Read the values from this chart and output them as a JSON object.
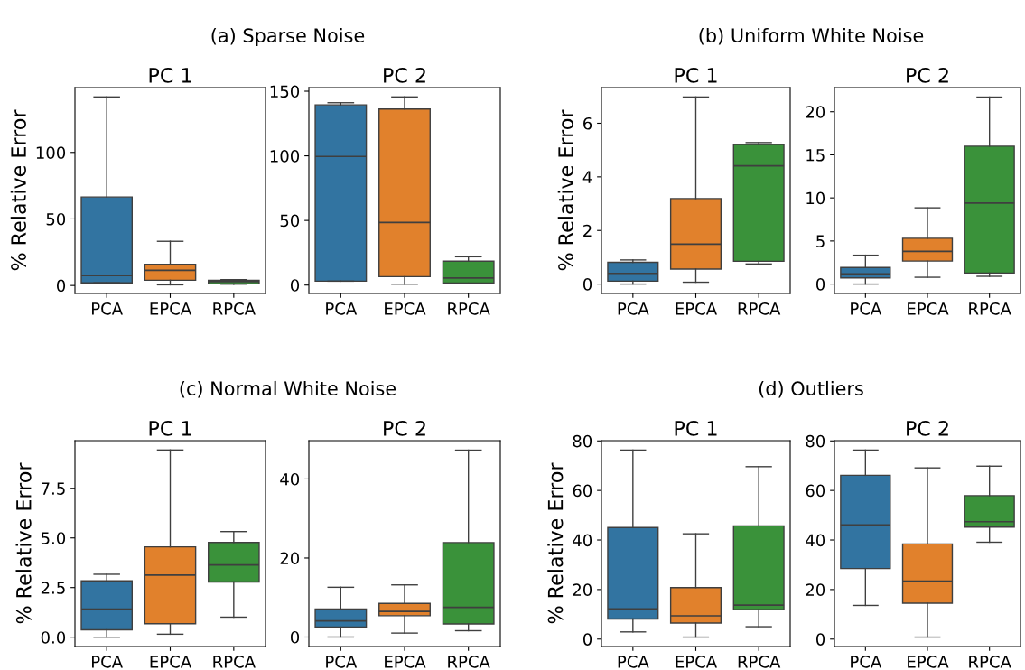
{
  "chart_data": [
    {
      "type": "box",
      "title": "PC 1",
      "ylabel": "% Relative Error",
      "annotations": [
        "(a) Sparse Noise"
      ],
      "categories": [
        "PCA",
        "EPCA",
        "RPCA"
      ],
      "colors": [
        "#3274a1",
        "#e1812c",
        "#3a923a"
      ],
      "ylim": [
        -6.0,
        148.7
      ],
      "yticks": [
        0,
        50,
        100
      ],
      "boxes": [
        {
          "low": 2.0,
          "q1": 2.0,
          "median": 7.5,
          "q3": 66.5,
          "high": 141.7
        },
        {
          "low": 0.5,
          "q1": 3.9,
          "median": 11.4,
          "q3": 16,
          "high": 33.2
        },
        {
          "low": 1.0,
          "q1": 1.2,
          "median": 2.9,
          "q3": 3.9,
          "high": 4.4
        }
      ]
    },
    {
      "type": "box",
      "title": "PC 2",
      "categories": [
        "PCA",
        "EPCA",
        "RPCA"
      ],
      "colors": [
        "#3274a1",
        "#e1812c",
        "#3a923a"
      ],
      "ylim": [
        -6.5,
        152.8
      ],
      "yticks": [
        0,
        50,
        100,
        150
      ],
      "boxes": [
        {
          "low": 3.0,
          "q1": 3.0,
          "median": 99.5,
          "q3": 139.4,
          "high": 141.1
        },
        {
          "low": 0.7,
          "q1": 6.5,
          "median": 48.4,
          "q3": 136.2,
          "high": 145.6
        },
        {
          "low": 1.2,
          "q1": 1.5,
          "median": 5.5,
          "q3": 18.5,
          "high": 21.9
        }
      ]
    },
    {
      "type": "box",
      "title": "PC 1",
      "ylabel": "% Relative Error",
      "annotations": [
        "(b) Uniform White Noise"
      ],
      "categories": [
        "PCA",
        "EPCA",
        "RPCA"
      ],
      "colors": [
        "#3274a1",
        "#e1812c",
        "#3a923a"
      ],
      "ylim": [
        -0.35,
        7.33
      ],
      "yticks": [
        0,
        2,
        4,
        6
      ],
      "boxes": [
        {
          "low": 0.0,
          "q1": 0.11,
          "median": 0.4,
          "q3": 0.81,
          "high": 0.9
        },
        {
          "low": 0.07,
          "q1": 0.56,
          "median": 1.49,
          "q3": 3.19,
          "high": 6.98
        },
        {
          "low": 0.75,
          "q1": 0.85,
          "median": 4.41,
          "q3": 5.21,
          "high": 5.28
        }
      ]
    },
    {
      "type": "box",
      "title": "PC 2",
      "categories": [
        "PCA",
        "EPCA",
        "RPCA"
      ],
      "colors": [
        "#3274a1",
        "#e1812c",
        "#3a923a"
      ],
      "ylim": [
        -1.09,
        22.8
      ],
      "yticks": [
        0,
        5,
        10,
        15,
        20
      ],
      "boxes": [
        {
          "low": 0.0,
          "q1": 0.72,
          "median": 1.17,
          "q3": 1.92,
          "high": 3.35
        },
        {
          "low": 0.79,
          "q1": 2.67,
          "median": 3.8,
          "q3": 5.31,
          "high": 8.85
        },
        {
          "low": 0.9,
          "q1": 1.28,
          "median": 9.4,
          "q3": 16.0,
          "high": 21.7
        }
      ]
    },
    {
      "type": "box",
      "title": "PC 1",
      "ylabel": "% Relative Error",
      "annotations": [
        "(c) Normal White Noise"
      ],
      "categories": [
        "PCA",
        "EPCA",
        "RPCA"
      ],
      "colors": [
        "#3274a1",
        "#e1812c",
        "#3a923a"
      ],
      "ylim": [
        -0.47,
        9.9
      ],
      "yticks": [
        {
          "value": 0,
          "label": "0.0"
        },
        {
          "value": 2.5,
          "label": "2.5"
        },
        {
          "value": 5,
          "label": "5.0"
        },
        {
          "value": 7.5,
          "label": "7.5"
        }
      ],
      "boxes": [
        {
          "low": 0.0,
          "q1": 0.37,
          "median": 1.41,
          "q3": 2.84,
          "high": 3.17
        },
        {
          "low": 0.15,
          "q1": 0.68,
          "median": 3.13,
          "q3": 4.55,
          "high": 9.43
        },
        {
          "low": 1.01,
          "q1": 2.78,
          "median": 3.64,
          "q3": 4.77,
          "high": 5.32
        }
      ]
    },
    {
      "type": "box",
      "title": "PC 2",
      "categories": [
        "PCA",
        "EPCA",
        "RPCA"
      ],
      "colors": [
        "#3274a1",
        "#e1812c",
        "#3a923a"
      ],
      "ylim": [
        -2.4,
        49.7
      ],
      "yticks": [
        0,
        20,
        40
      ],
      "boxes": [
        {
          "low": 0.0,
          "q1": 2.5,
          "median": 4.1,
          "q3": 7.1,
          "high": 12.6
        },
        {
          "low": 1.0,
          "q1": 5.4,
          "median": 6.5,
          "q3": 8.5,
          "high": 13.2
        },
        {
          "low": 1.6,
          "q1": 3.3,
          "median": 7.5,
          "q3": 23.9,
          "high": 47.3
        }
      ]
    },
    {
      "type": "box",
      "title": "PC 1",
      "ylabel": "% Relative Error",
      "annotations": [
        "(d) Outliers"
      ],
      "categories": [
        "PCA",
        "EPCA",
        "RPCA"
      ],
      "colors": [
        "#3274a1",
        "#e1812c",
        "#3a923a"
      ],
      "ylim": [
        -3.0,
        80.1
      ],
      "yticks": [
        0,
        20,
        40,
        60,
        80
      ],
      "boxes": [
        {
          "low": 2.9,
          "q1": 8.1,
          "median": 12.2,
          "q3": 45.0,
          "high": 76.3
        },
        {
          "low": 0.8,
          "q1": 6.5,
          "median": 9.4,
          "q3": 20.8,
          "high": 42.5
        },
        {
          "low": 5.0,
          "q1": 11.9,
          "median": 13.7,
          "q3": 45.7,
          "high": 69.6
        }
      ]
    },
    {
      "type": "box",
      "title": "PC 2",
      "categories": [
        "PCA",
        "EPCA",
        "RPCA"
      ],
      "colors": [
        "#3274a1",
        "#e1812c",
        "#3a923a"
      ],
      "ylim": [
        -3.0,
        80.1
      ],
      "yticks": [
        0,
        20,
        40,
        60,
        80
      ],
      "boxes": [
        {
          "low": 13.6,
          "q1": 28.5,
          "median": 46.1,
          "q3": 66.1,
          "high": 76.3
        },
        {
          "low": 0.8,
          "q1": 14.5,
          "median": 23.4,
          "q3": 38.4,
          "high": 69.1
        },
        {
          "low": 39.1,
          "q1": 45.2,
          "median": 47.4,
          "q3": 57.9,
          "high": 69.8
        }
      ]
    }
  ]
}
